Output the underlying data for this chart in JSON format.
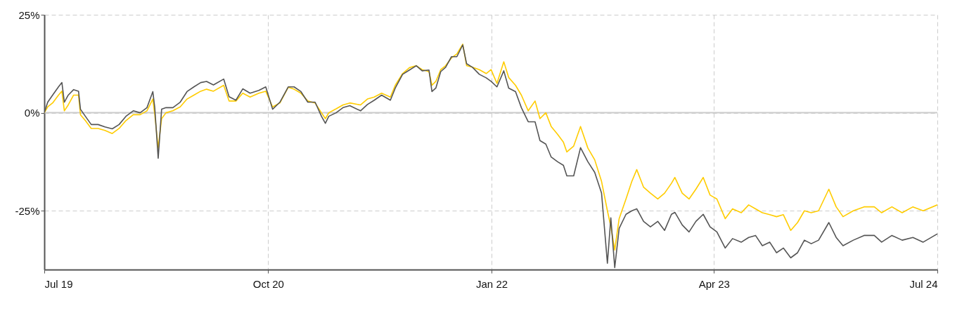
{
  "chart_data": {
    "type": "line",
    "x": [
      "2019-07-01",
      "2019-07-08",
      "2019-07-18",
      "2019-07-30",
      "2019-08-06",
      "2019-08-11",
      "2019-08-19",
      "2019-08-30",
      "2019-09-09",
      "2019-09-13",
      "2019-09-23",
      "2019-10-05",
      "2019-10-19",
      "2019-11-02",
      "2019-11-17",
      "2019-12-01",
      "2019-12-15",
      "2019-12-30",
      "2020-01-13",
      "2020-01-27",
      "2020-02-08",
      "2020-02-12",
      "2020-02-19",
      "2020-02-26",
      "2020-03-06",
      "2020-03-20",
      "2020-04-04",
      "2020-04-18",
      "2020-05-02",
      "2020-05-16",
      "2020-05-28",
      "2020-06-11",
      "2020-07-02",
      "2020-07-13",
      "2020-07-27",
      "2020-08-10",
      "2020-08-25",
      "2020-09-12",
      "2020-09-26",
      "2020-10-10",
      "2020-10-25",
      "2020-11-11",
      "2020-11-23",
      "2020-12-07",
      "2020-12-21",
      "2021-01-05",
      "2021-01-18",
      "2021-01-26",
      "2021-02-02",
      "2021-02-17",
      "2021-03-03",
      "2021-03-17",
      "2021-04-08",
      "2021-04-22",
      "2021-05-06",
      "2021-05-21",
      "2021-06-08",
      "2021-06-18",
      "2021-07-03",
      "2021-07-17",
      "2021-07-31",
      "2021-08-12",
      "2021-08-26",
      "2021-09-01",
      "2021-09-09",
      "2021-09-19",
      "2021-09-29",
      "2021-10-11",
      "2021-10-22",
      "2021-11-03",
      "2021-11-11",
      "2021-11-23",
      "2021-12-07",
      "2021-12-21",
      "2021-12-31",
      "2022-01-12",
      "2022-01-26",
      "2022-02-05",
      "2022-02-19",
      "2022-03-03",
      "2022-03-17",
      "2022-03-31",
      "2022-04-10",
      "2022-04-22",
      "2022-05-03",
      "2022-05-16",
      "2022-05-28",
      "2022-06-04",
      "2022-06-18",
      "2022-07-02",
      "2022-07-17",
      "2022-07-31",
      "2022-08-14",
      "2022-08-26",
      "2022-09-02",
      "2022-09-10",
      "2022-09-19",
      "2022-10-03",
      "2022-10-15",
      "2022-10-25",
      "2022-11-08",
      "2022-11-22",
      "2022-12-07",
      "2022-12-21",
      "2023-01-04",
      "2023-01-11",
      "2023-01-26",
      "2023-02-09",
      "2023-02-23",
      "2023-03-10",
      "2023-03-24",
      "2023-04-07",
      "2023-04-24",
      "2023-05-09",
      "2023-05-27",
      "2023-06-11",
      "2023-06-25",
      "2023-07-09",
      "2023-07-24",
      "2023-08-07",
      "2023-08-21",
      "2023-09-05",
      "2023-09-19",
      "2023-10-03",
      "2023-10-17",
      "2023-11-01",
      "2023-11-22",
      "2023-12-07",
      "2023-12-21",
      "2024-01-11",
      "2024-02-02",
      "2024-02-23",
      "2024-03-09",
      "2024-03-30",
      "2024-04-20",
      "2024-05-12",
      "2024-06-02",
      "2024-07-01"
    ],
    "series": [
      {
        "color": "#ffcc00",
        "values": [
          0,
          1.5,
          2.5,
          4.5,
          5.5,
          0.5,
          2,
          4.5,
          4.5,
          -0.5,
          -2,
          -4,
          -4,
          -4.5,
          -5.3,
          -4,
          -2,
          -0.5,
          -0.5,
          0.5,
          3.5,
          -0.5,
          -9,
          -1.5,
          0,
          0.5,
          1.5,
          3.5,
          4.5,
          5.5,
          6,
          5.5,
          7,
          3,
          3,
          5,
          4,
          5,
          5.5,
          1.5,
          2.5,
          6.5,
          6,
          5,
          3,
          2.5,
          0,
          -1.5,
          0,
          1,
          2,
          2.5,
          2,
          3.5,
          4,
          5,
          4,
          7,
          10,
          11.5,
          12,
          11,
          10.5,
          7,
          8,
          11,
          12,
          14,
          15,
          17.5,
          12,
          11.6,
          11,
          10,
          11,
          7.5,
          13,
          9,
          7,
          4.5,
          0.5,
          3,
          -1.5,
          0,
          -3.5,
          -5.5,
          -7.5,
          -10,
          -8.5,
          -3.5,
          -9,
          -12,
          -17.5,
          -25,
          -29,
          -35,
          -27,
          -22,
          -17.5,
          -14.5,
          -19,
          -20.5,
          -22,
          -20.5,
          -18,
          -16.5,
          -20.5,
          -22,
          -19.5,
          -16.5,
          -21,
          -22,
          -27,
          -24.5,
          -25.5,
          -23.5,
          -24.5,
          -25.5,
          -26,
          -26.5,
          -26,
          -30,
          -28,
          -25,
          -25.5,
          -25,
          -19.5,
          -24,
          -26.5,
          -25,
          -24,
          -24,
          -25.5,
          -24,
          -25.5,
          -24,
          -25,
          -23.5
        ]
      },
      {
        "color": "#555555",
        "values": [
          0,
          2.7,
          4.5,
          6.6,
          7.7,
          2.7,
          4.5,
          5.9,
          5.5,
          0.9,
          -0.9,
          -3,
          -3,
          -3.6,
          -4.1,
          -3,
          -0.9,
          0.5,
          0,
          1.3,
          5.4,
          1.3,
          -11.6,
          0.9,
          1.3,
          1.3,
          2.7,
          5.4,
          6.6,
          7.7,
          8,
          7.1,
          8.6,
          4.1,
          3.2,
          6.1,
          5,
          5.7,
          6.6,
          0.9,
          2.7,
          6.6,
          6.6,
          5.4,
          2.7,
          2.7,
          -0.9,
          -2.7,
          -0.9,
          0,
          1.3,
          1.8,
          0.5,
          2.1,
          3.2,
          4.5,
          3.2,
          6.3,
          9.8,
          10.9,
          12,
          10.7,
          10.9,
          5.4,
          6.3,
          10.5,
          11.6,
          14.3,
          14.3,
          17.3,
          12.5,
          11.6,
          9.8,
          8.9,
          8,
          6.6,
          10.7,
          6.3,
          5.4,
          1.3,
          -2.3,
          -2.3,
          -7.1,
          -8,
          -11.3,
          -12.5,
          -13.4,
          -16.1,
          -16.1,
          -8.9,
          -12.5,
          -15.2,
          -20.5,
          -38.4,
          -26.8,
          -39.5,
          -29.5,
          -25.9,
          -25,
          -24.5,
          -27.7,
          -29.1,
          -27.7,
          -30,
          -25.9,
          -25.4,
          -28.6,
          -30.4,
          -27.7,
          -25.9,
          -29.1,
          -30.4,
          -34.5,
          -32.1,
          -33,
          -31.8,
          -31.3,
          -33.9,
          -33,
          -35.7,
          -34.5,
          -37,
          -35.7,
          -32.5,
          -33.4,
          -32.5,
          -28,
          -31.8,
          -33.9,
          -32.5,
          -31.3,
          -31.3,
          -33,
          -31.3,
          -32.5,
          -31.8,
          -33,
          -30.9
        ]
      }
    ],
    "xlim": [
      "2019-07-01",
      "2024-07-01"
    ],
    "xticks": [
      {
        "value": "2019-07-01",
        "label": "Jul 19"
      },
      {
        "value": "2020-10-01",
        "label": "Oct 20"
      },
      {
        "value": "2022-01-01",
        "label": "Jan 22"
      },
      {
        "value": "2023-04-01",
        "label": "Apr 23"
      },
      {
        "value": "2024-07-01",
        "label": "Jul 24"
      }
    ],
    "ylim": [
      -40,
      25
    ],
    "yticks": [
      {
        "value": -25,
        "label": "-25%"
      },
      {
        "value": 0,
        "label": "0%"
      },
      {
        "value": 25,
        "label": "25%"
      }
    ],
    "ref_lines": [
      {
        "axis": "y",
        "value": 0,
        "color": "#cccccc",
        "line_style": "solid"
      }
    ],
    "grid": true,
    "line_style": "solid",
    "marker": "none"
  }
}
